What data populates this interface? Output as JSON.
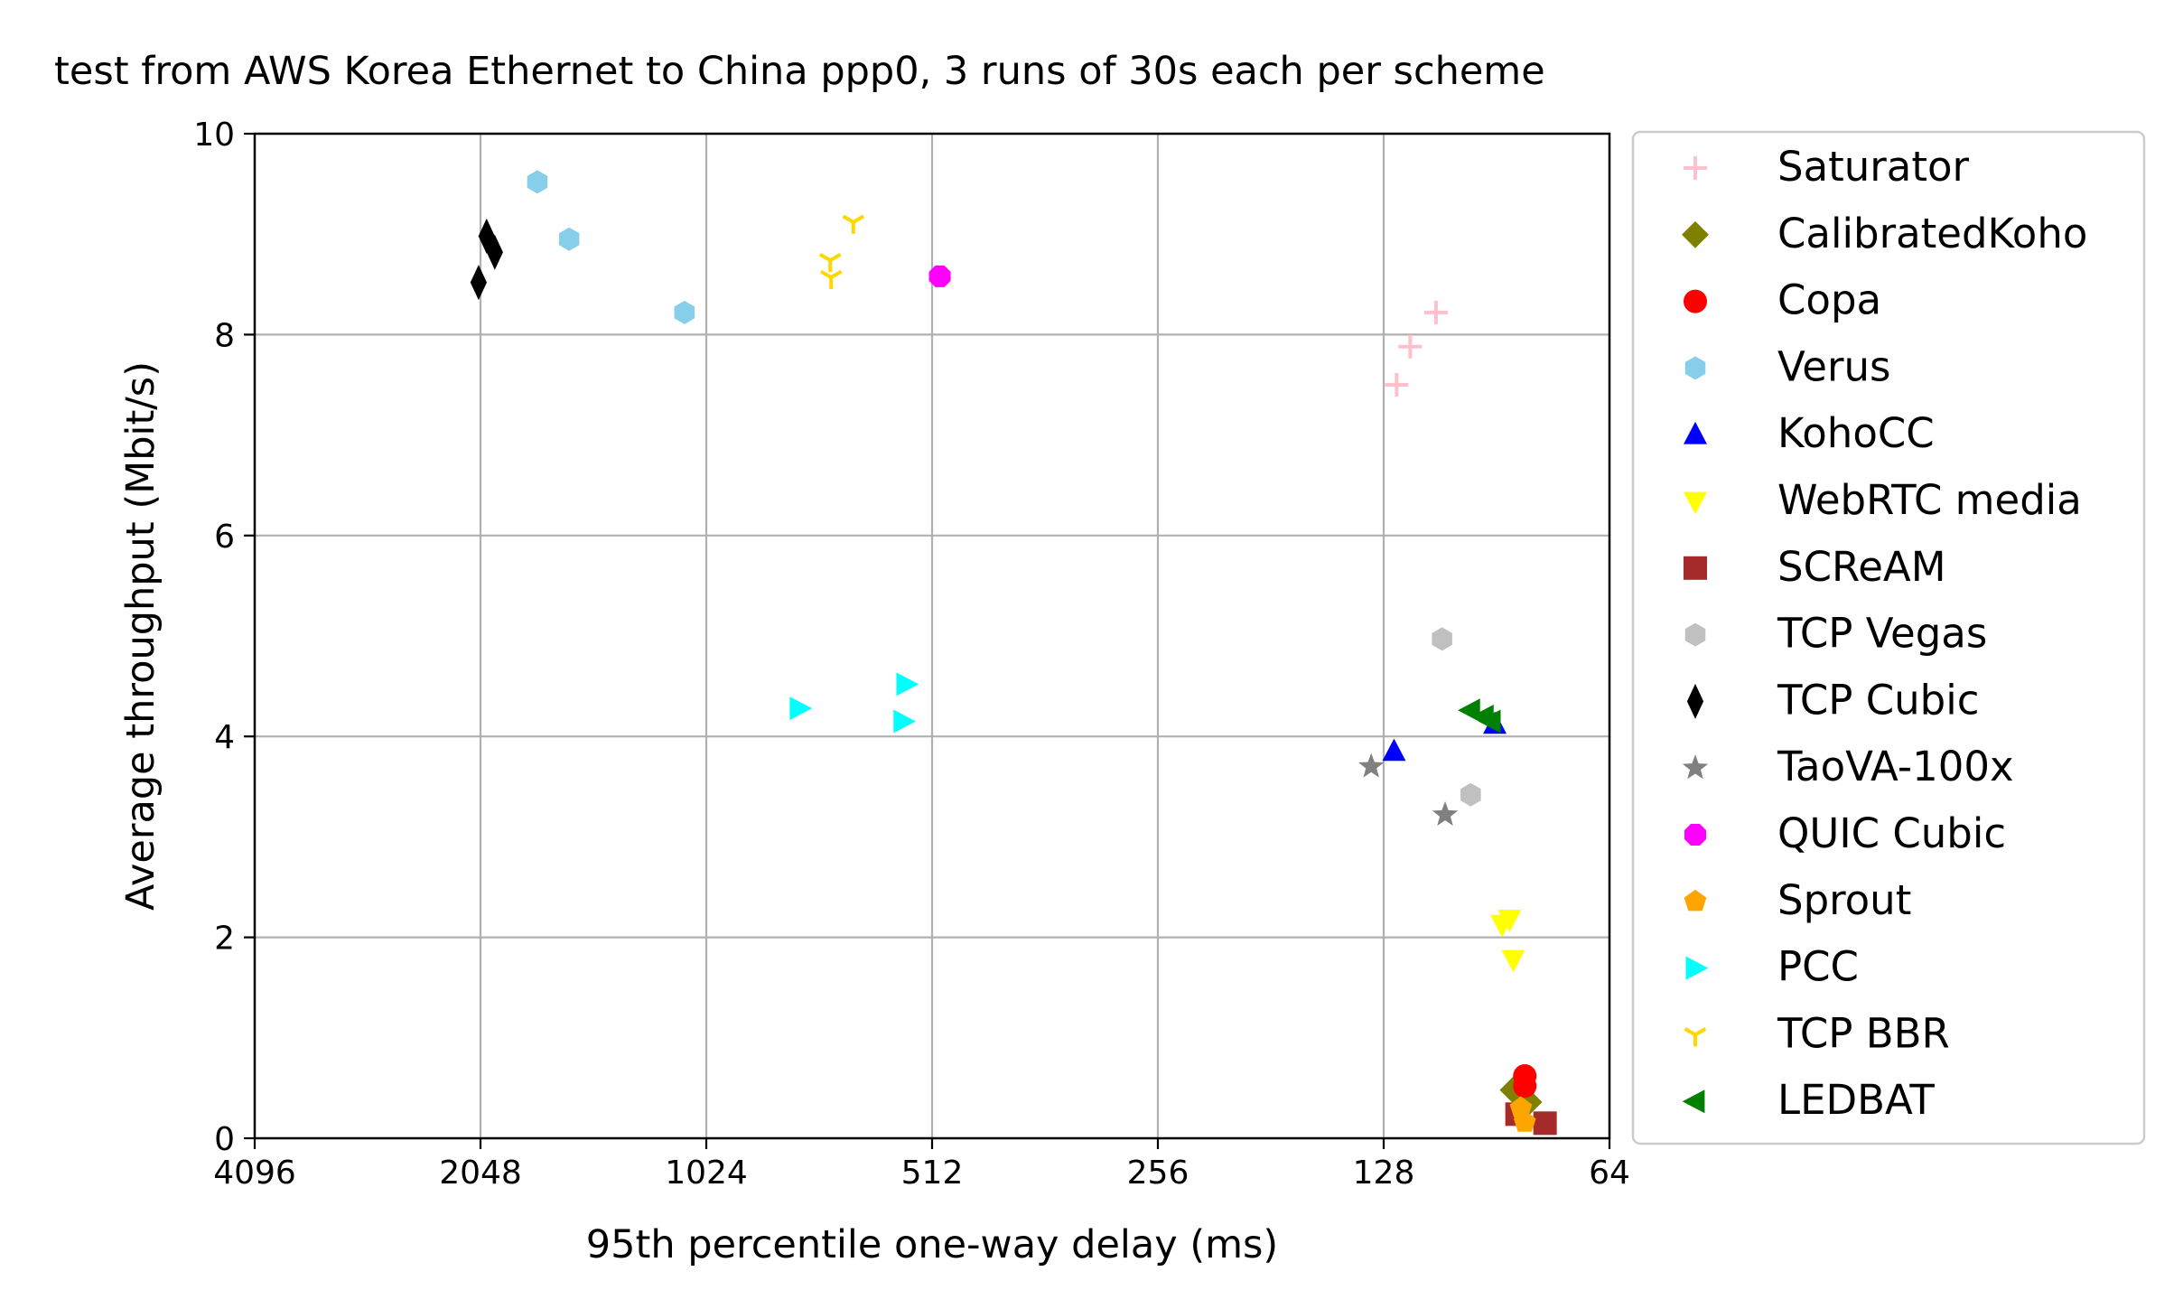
{
  "chart_data": {
    "type": "scatter",
    "title": "test from AWS Korea Ethernet to China ppp0, 3 runs of 30s each per scheme",
    "xlabel": "95th percentile one-way delay (ms)",
    "ylabel": "Average throughput (Mbit/s)",
    "x_scale": "log2",
    "x_inverted": true,
    "xlim": [
      4096,
      64
    ],
    "ylim": [
      0,
      10
    ],
    "xticks": [
      4096,
      2048,
      1024,
      512,
      256,
      128,
      64
    ],
    "xtick_labels": [
      "4096",
      "2048",
      "1024",
      "512",
      "256",
      "128",
      "64"
    ],
    "yticks": [
      0,
      2,
      4,
      6,
      8,
      10
    ],
    "ytick_labels": [
      "0",
      "2",
      "4",
      "6",
      "8",
      "10"
    ],
    "grid": true,
    "legend_position": "outside right",
    "series": [
      {
        "name": "Saturator",
        "marker": "plus",
        "color": "#ffc0cb",
        "points": [
          [
            109,
            8.22
          ],
          [
            118,
            7.88
          ],
          [
            123,
            7.5
          ]
        ]
      },
      {
        "name": "CalibratedKoho",
        "marker": "diamond",
        "color": "#808000",
        "points": [
          [
            86,
            0.48
          ],
          [
            82,
            0.36
          ]
        ]
      },
      {
        "name": "Copa",
        "marker": "circle",
        "color": "#ff0000",
        "points": [
          [
            83,
            0.62
          ],
          [
            83,
            0.52
          ]
        ]
      },
      {
        "name": "Verus",
        "marker": "hexagon",
        "color": "#87ceeb",
        "points": [
          [
            1720,
            9.52
          ],
          [
            1560,
            8.95
          ],
          [
            1095,
            8.22
          ]
        ]
      },
      {
        "name": "KohoCC",
        "marker": "triangle-up",
        "color": "#0000ff",
        "points": [
          [
            124,
            3.85
          ],
          [
            91,
            4.12
          ]
        ]
      },
      {
        "name": "WebRTC media",
        "marker": "triangle-down",
        "color": "#ffff00",
        "points": [
          [
            89,
            2.13
          ],
          [
            87,
            2.18
          ],
          [
            86,
            1.78
          ]
        ]
      },
      {
        "name": "SCReAM",
        "marker": "square",
        "color": "#a52a2a",
        "points": [
          [
            78,
            0.15
          ],
          [
            85,
            0.24
          ]
        ]
      },
      {
        "name": "TCP Vegas",
        "marker": "hexagon",
        "color": "#c0c0c0",
        "points": [
          [
            107,
            4.97
          ],
          [
            98,
            3.42
          ]
        ]
      },
      {
        "name": "TCP Cubic",
        "marker": "thin-diamond",
        "color": "#000000",
        "points": [
          [
            2010,
            8.98
          ],
          [
            1960,
            8.82
          ],
          [
            2060,
            8.52
          ]
        ]
      },
      {
        "name": "TaoVA-100x",
        "marker": "star",
        "color": "#808080",
        "points": [
          [
            133,
            3.7
          ],
          [
            106,
            3.22
          ]
        ]
      },
      {
        "name": "QUIC Cubic",
        "marker": "octagon",
        "color": "#ff00ff",
        "points": [
          [
            500,
            8.58
          ]
        ]
      },
      {
        "name": "Sprout",
        "marker": "pentagon",
        "color": "#ffa500",
        "points": [
          [
            84,
            0.3
          ],
          [
            83,
            0.16
          ]
        ]
      },
      {
        "name": "PCC",
        "marker": "triangle-right",
        "color": "#00ffff",
        "points": [
          [
            770,
            4.28
          ],
          [
            555,
            4.52
          ],
          [
            560,
            4.15
          ]
        ]
      },
      {
        "name": "TCP BBR",
        "marker": "tri-down",
        "color": "#ffd700",
        "points": [
          [
            652,
            9.12
          ],
          [
            700,
            8.74
          ],
          [
            698,
            8.57
          ]
        ]
      },
      {
        "name": "LEDBAT",
        "marker": "triangle-left",
        "color": "#008000",
        "points": [
          [
            98,
            4.26
          ],
          [
            94,
            4.2
          ],
          [
            92,
            4.15
          ]
        ]
      }
    ]
  }
}
